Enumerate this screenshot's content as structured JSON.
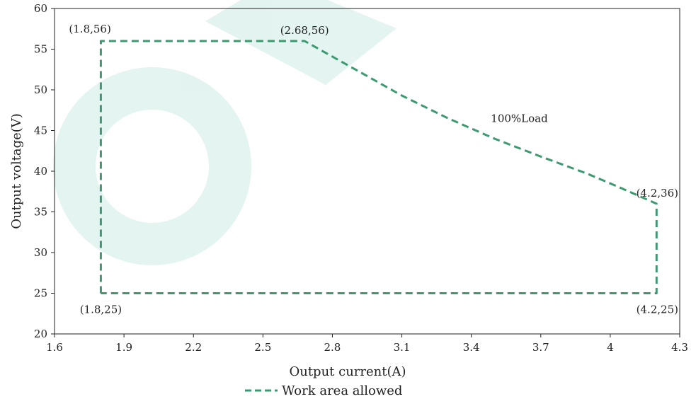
{
  "chart_data": {
    "type": "line",
    "xlabel": "Output current(A)",
    "ylabel": "Output voltage(V)",
    "xlim": [
      1.6,
      4.3
    ],
    "ylim": [
      20,
      60
    ],
    "x_ticks": [
      1.6,
      1.9,
      2.2,
      2.5,
      2.8,
      3.1,
      3.4,
      3.7,
      4,
      4.3
    ],
    "x_tick_labels": [
      "1.6",
      "1.9",
      "2.2",
      "2.5",
      "2.8",
      "3.1",
      "3.4",
      "3.7",
      "4",
      "4.3"
    ],
    "y_ticks": [
      20,
      25,
      30,
      35,
      40,
      45,
      50,
      55,
      60
    ],
    "y_tick_labels": [
      "20",
      "25",
      "30",
      "35",
      "40",
      "45",
      "50",
      "55",
      "60"
    ],
    "grid": false,
    "legend_position": "bottom-center",
    "series": [
      {
        "name": "Work area allowed",
        "color": "#3d9970",
        "style": "dashed",
        "points": [
          [
            1.8,
            25
          ],
          [
            1.8,
            56
          ],
          [
            2.68,
            56
          ],
          [
            2.9,
            52.5
          ],
          [
            3.1,
            49.3
          ],
          [
            3.3,
            46.5
          ],
          [
            3.5,
            44.0
          ],
          [
            3.7,
            41.8
          ],
          [
            3.9,
            39.7
          ],
          [
            4.05,
            37.9
          ],
          [
            4.2,
            36
          ],
          [
            4.2,
            25
          ],
          [
            1.8,
            25
          ]
        ]
      }
    ],
    "annotations": [
      {
        "text": "(1.8,56)",
        "x": 1.8,
        "y": 56,
        "anchor": "above-left"
      },
      {
        "text": "(2.68,56)",
        "x": 2.68,
        "y": 56,
        "anchor": "above"
      },
      {
        "text": "100%Load",
        "x": 3.46,
        "y": 46.5,
        "anchor": "right"
      },
      {
        "text": "(4.2,36)",
        "x": 4.2,
        "y": 36,
        "anchor": "above"
      },
      {
        "text": "(1.8,25)",
        "x": 1.8,
        "y": 25,
        "anchor": "below"
      },
      {
        "text": "(4.2,25)",
        "x": 4.2,
        "y": 25,
        "anchor": "below"
      }
    ]
  }
}
